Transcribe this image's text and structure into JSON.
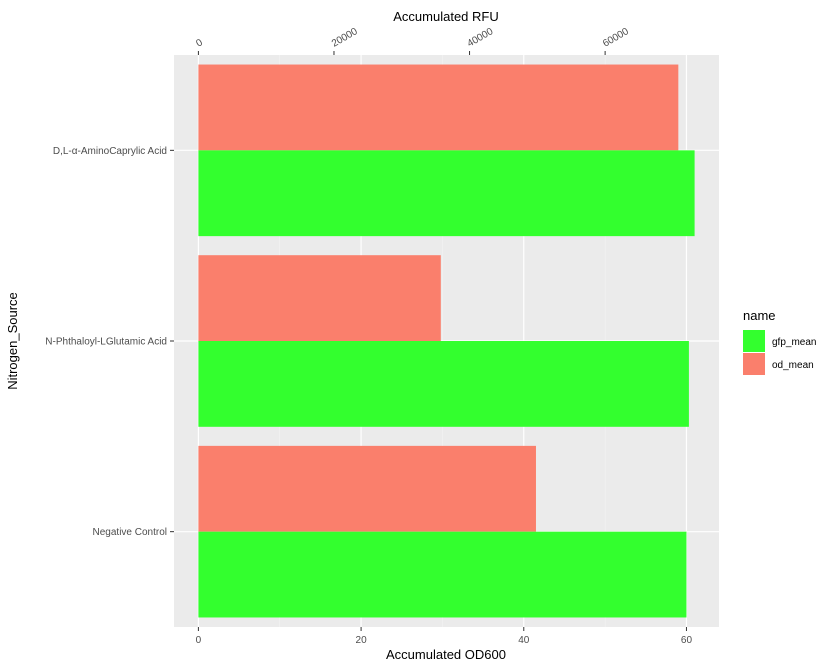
{
  "chart_data": {
    "type": "bar",
    "orientation": "horizontal",
    "categories": [
      "D,L-α-AminoCaprylic Acid",
      "N-Phthaloyl-LGlutamic Acid",
      "Negative Control"
    ],
    "series": [
      {
        "name": "gfp_mean",
        "color": "#33ff2e",
        "values": [
          61.0,
          60.3,
          60.0
        ]
      },
      {
        "name": "od_mean",
        "color": "#fa7f6c",
        "values": [
          59.0,
          29.8,
          41.5
        ]
      }
    ],
    "xlabel": "Accumulated OD600",
    "ylabel": "Nitrogen_Source",
    "secondary_xlabel": "Accumulated RFU",
    "xlim": [
      -3,
      64
    ],
    "xticks": [
      0,
      20,
      40,
      60
    ],
    "xticks_labels": [
      "0",
      "20",
      "40",
      "60"
    ],
    "secondary_xticks": [
      0,
      20000,
      40000,
      60000
    ],
    "secondary_xticks_labels": [
      "0",
      "20000",
      "40000",
      "60000"
    ],
    "secondary_scale": 1200,
    "legend_title": "name",
    "legend_position": "right",
    "grid": true
  }
}
